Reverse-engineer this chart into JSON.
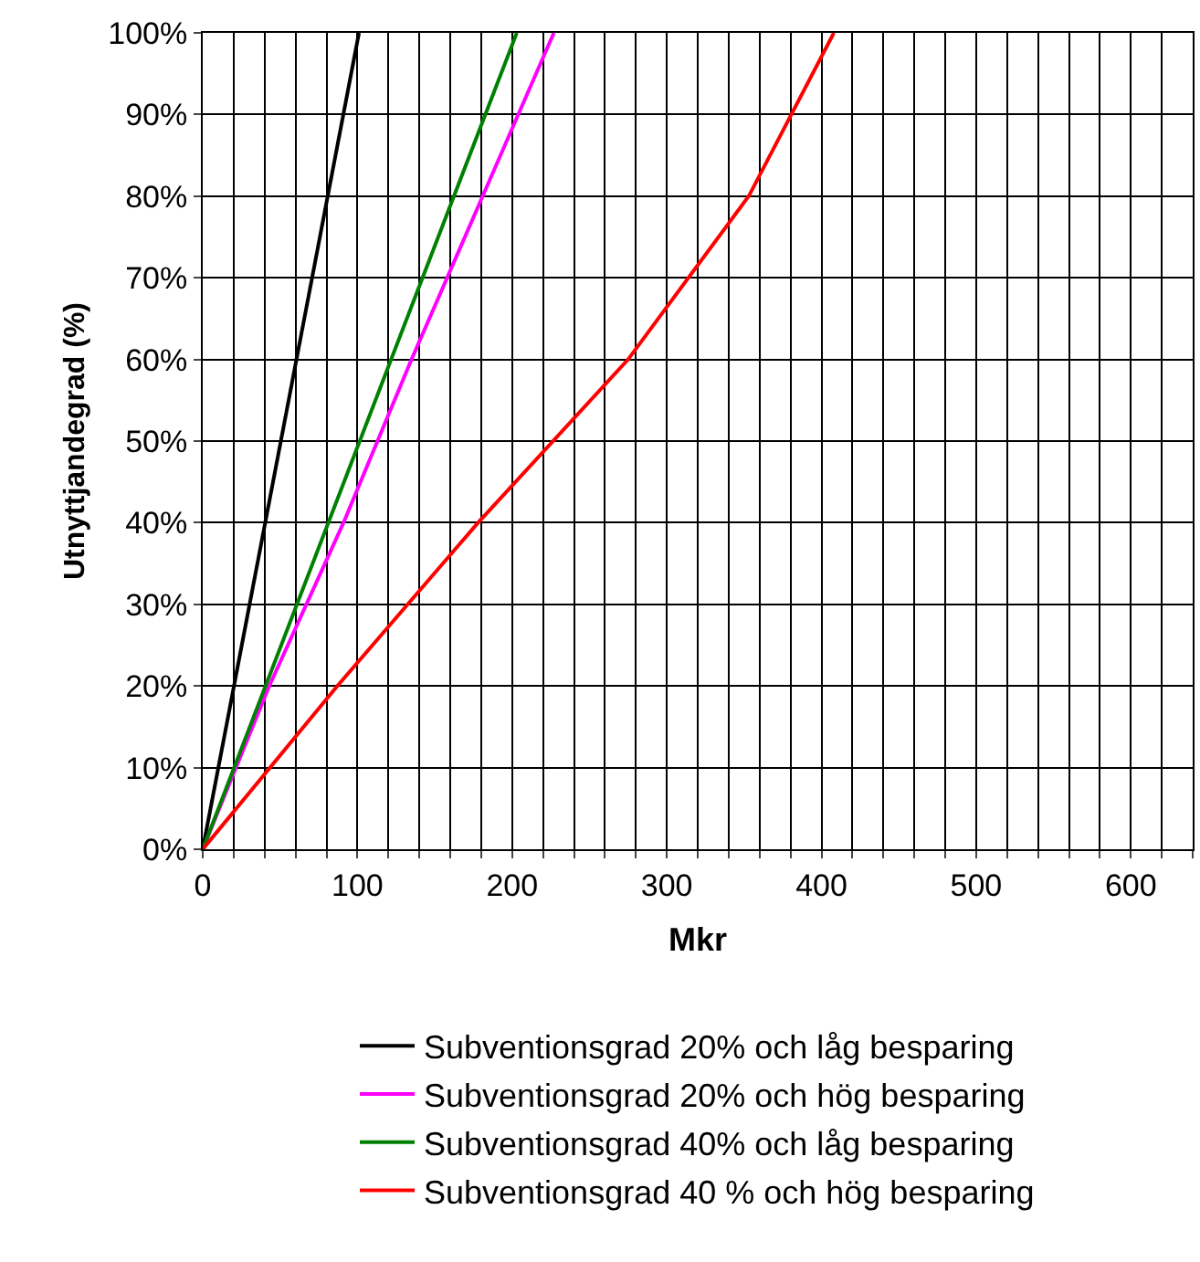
{
  "chart_data": {
    "type": "line",
    "xlabel": "Mkr",
    "ylabel": "Utnyttjandegrad (%)",
    "xlim": [
      0,
      640
    ],
    "ylim": [
      0,
      100
    ],
    "xticks": [
      0,
      {
        "value": 20,
        "label": null
      },
      {
        "value": 40,
        "label": null
      },
      {
        "value": 60,
        "label": null
      },
      {
        "value": 80,
        "label": null
      },
      100,
      {
        "value": 120,
        "label": null
      },
      {
        "value": 140,
        "label": null
      },
      {
        "value": 160,
        "label": null
      },
      {
        "value": 180,
        "label": null
      },
      200,
      {
        "value": 220,
        "label": null
      },
      {
        "value": 240,
        "label": null
      },
      {
        "value": 260,
        "label": null
      },
      {
        "value": 280,
        "label": null
      },
      300,
      {
        "value": 320,
        "label": null
      },
      {
        "value": 340,
        "label": null
      },
      {
        "value": 360,
        "label": null
      },
      {
        "value": 380,
        "label": null
      },
      400,
      {
        "value": 420,
        "label": null
      },
      {
        "value": 440,
        "label": null
      },
      {
        "value": 460,
        "label": null
      },
      {
        "value": 480,
        "label": null
      },
      500,
      {
        "value": 520,
        "label": null
      },
      {
        "value": 540,
        "label": null
      },
      {
        "value": 560,
        "label": null
      },
      {
        "value": 580,
        "label": null
      },
      600,
      {
        "value": 620,
        "label": null
      },
      {
        "value": 640,
        "label": null
      }
    ],
    "yticks": [
      {
        "value": 0,
        "label": "0%"
      },
      {
        "value": 10,
        "label": "10%"
      },
      {
        "value": 20,
        "label": "20%"
      },
      {
        "value": 30,
        "label": "30%"
      },
      {
        "value": 40,
        "label": "40%"
      },
      {
        "value": 50,
        "label": "50%"
      },
      {
        "value": 60,
        "label": "60%"
      },
      {
        "value": 70,
        "label": "70%"
      },
      {
        "value": 80,
        "label": "80%"
      },
      {
        "value": 90,
        "label": "90%"
      },
      {
        "value": 100,
        "label": "100%"
      }
    ],
    "grid": true,
    "legend": "bottom",
    "marker": "none",
    "line_style": "solid",
    "series": [
      {
        "name": "Subventionsgrad 20% och låg besparing",
        "color": "#000000",
        "x": [
          0,
          101
        ],
        "values": [
          0,
          100
        ]
      },
      {
        "name": "Subventionsgrad 20% och hög besparing",
        "color": "#ff00ff",
        "x": [
          0,
          43,
          91,
          135,
          181,
          227
        ],
        "values": [
          0,
          20,
          40,
          60,
          80,
          100
        ]
      },
      {
        "name": "Subventionsgrad 40% och låg besparing",
        "color": "#008000",
        "x": [
          0,
          203
        ],
        "values": [
          0,
          100
        ]
      },
      {
        "name": "Subventionsgrad 40 % och hög besparing",
        "color": "#ff0000",
        "x": [
          0,
          87,
          178,
          275,
          353,
          408
        ],
        "values": [
          0,
          20,
          40,
          60,
          80,
          100
        ]
      }
    ]
  }
}
